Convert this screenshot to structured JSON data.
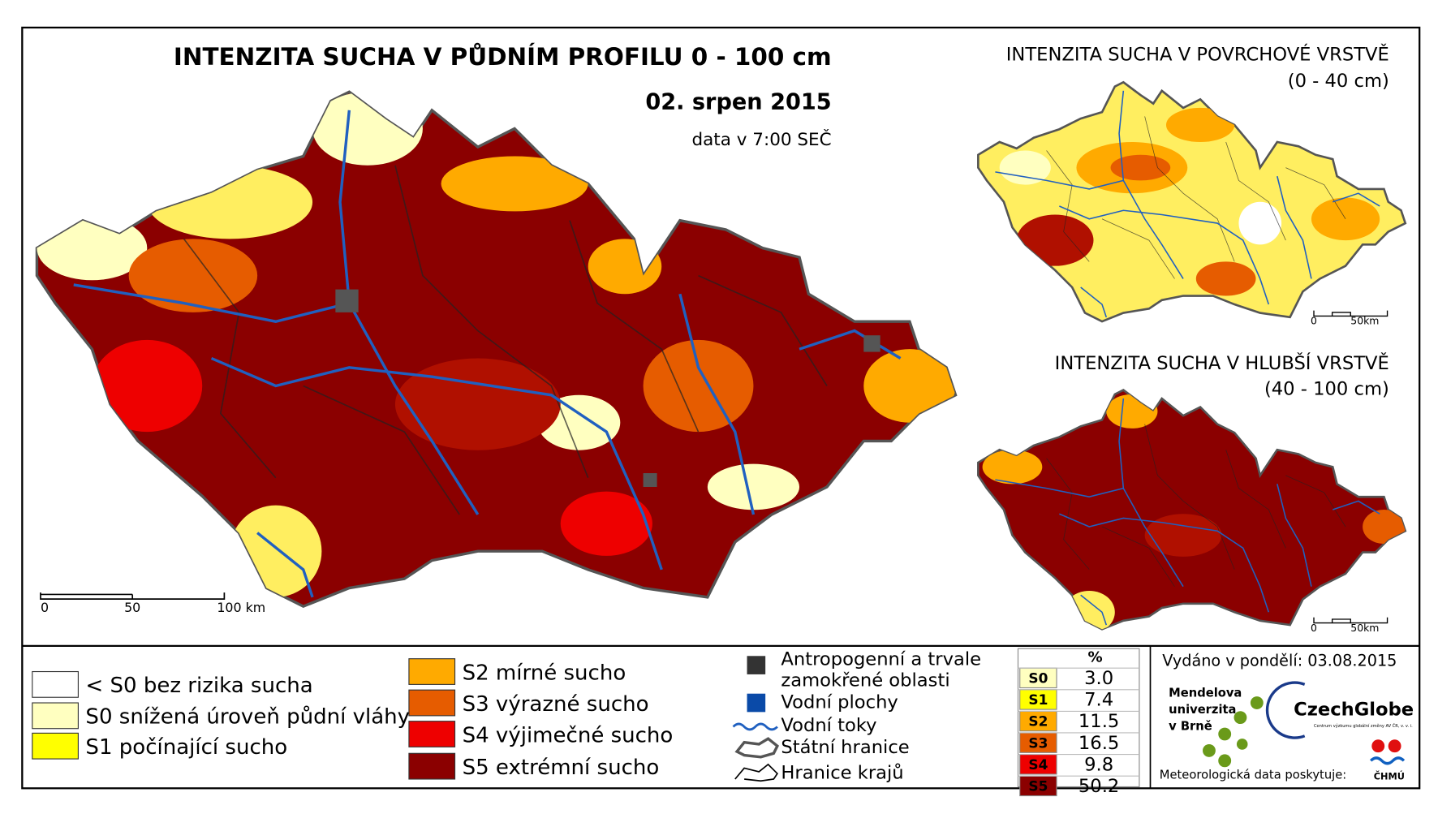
{
  "main_map": {
    "title": "INTENZITA SUCHA V PŮDNÍM PROFILU 0 - 100 cm",
    "date": "02. srpen 2015",
    "note": "data v 7:00 SEČ",
    "scale": [
      "0",
      "50",
      "100 km"
    ]
  },
  "inset_top": {
    "title": "INTENZITA SUCHA V POVRCHOVÉ VRSTVĚ",
    "depth": "(0 - 40 cm)",
    "scale": [
      "0",
      "50km"
    ]
  },
  "inset_bottom": {
    "title": "INTENZITA SUCHA V HLUBŠÍ VRSTVĚ",
    "depth": "(40 - 100 cm)",
    "scale": [
      "0",
      "50km"
    ]
  },
  "legend": {
    "classes": [
      {
        "label": "< S0 bez rizika sucha",
        "color": "#ffffff"
      },
      {
        "label": "S0 snížená úroveň půdní vláhy",
        "color": "#ffffc0"
      },
      {
        "label": "S1 počínající sucho",
        "color": "#ffff00"
      },
      {
        "label": "S2 mírné sucho",
        "color": "#ffaa00"
      },
      {
        "label": "S3 výrazné sucho",
        "color": "#e65c00"
      },
      {
        "label": "S4 výjimečné sucho",
        "color": "#ee0000"
      },
      {
        "label": "S5 extrémní sucho",
        "color": "#8b0000"
      }
    ],
    "layers": [
      {
        "lines": [
          "Antropogenní a trvale",
          "zamokřené oblasti"
        ]
      },
      {
        "lines": [
          "Vodní plochy"
        ]
      },
      {
        "lines": [
          "Vodní toky"
        ]
      },
      {
        "lines": [
          "Státní hranice"
        ]
      },
      {
        "lines": [
          "Hranice krajů"
        ]
      }
    ]
  },
  "stats": {
    "header": "%",
    "rows": [
      {
        "label": "S0",
        "value": "3.0",
        "color": "#ffffc0"
      },
      {
        "label": "S1",
        "value": "7.4",
        "color": "#ffff00"
      },
      {
        "label": "S2",
        "value": "11.5",
        "color": "#ffaa00"
      },
      {
        "label": "S3",
        "value": "16.5",
        "color": "#e65c00"
      },
      {
        "label": "S4",
        "value": "9.8",
        "color": "#ee0000"
      },
      {
        "label": "S5",
        "value": "50.2",
        "color": "#8b0000"
      }
    ]
  },
  "issued": "Vydáno v pondělí: 03.08.2015",
  "logos": {
    "mendel": [
      "Mendelova",
      "univerzita",
      "v Brně"
    ],
    "czechglobe": "CzechGlobe",
    "czechglobe_sub": "Centrum výzkumu globální změny AV ČR, v. v. i.",
    "chmu": "ČHMÚ"
  },
  "provider": "Meteorologická data poskytuje:"
}
